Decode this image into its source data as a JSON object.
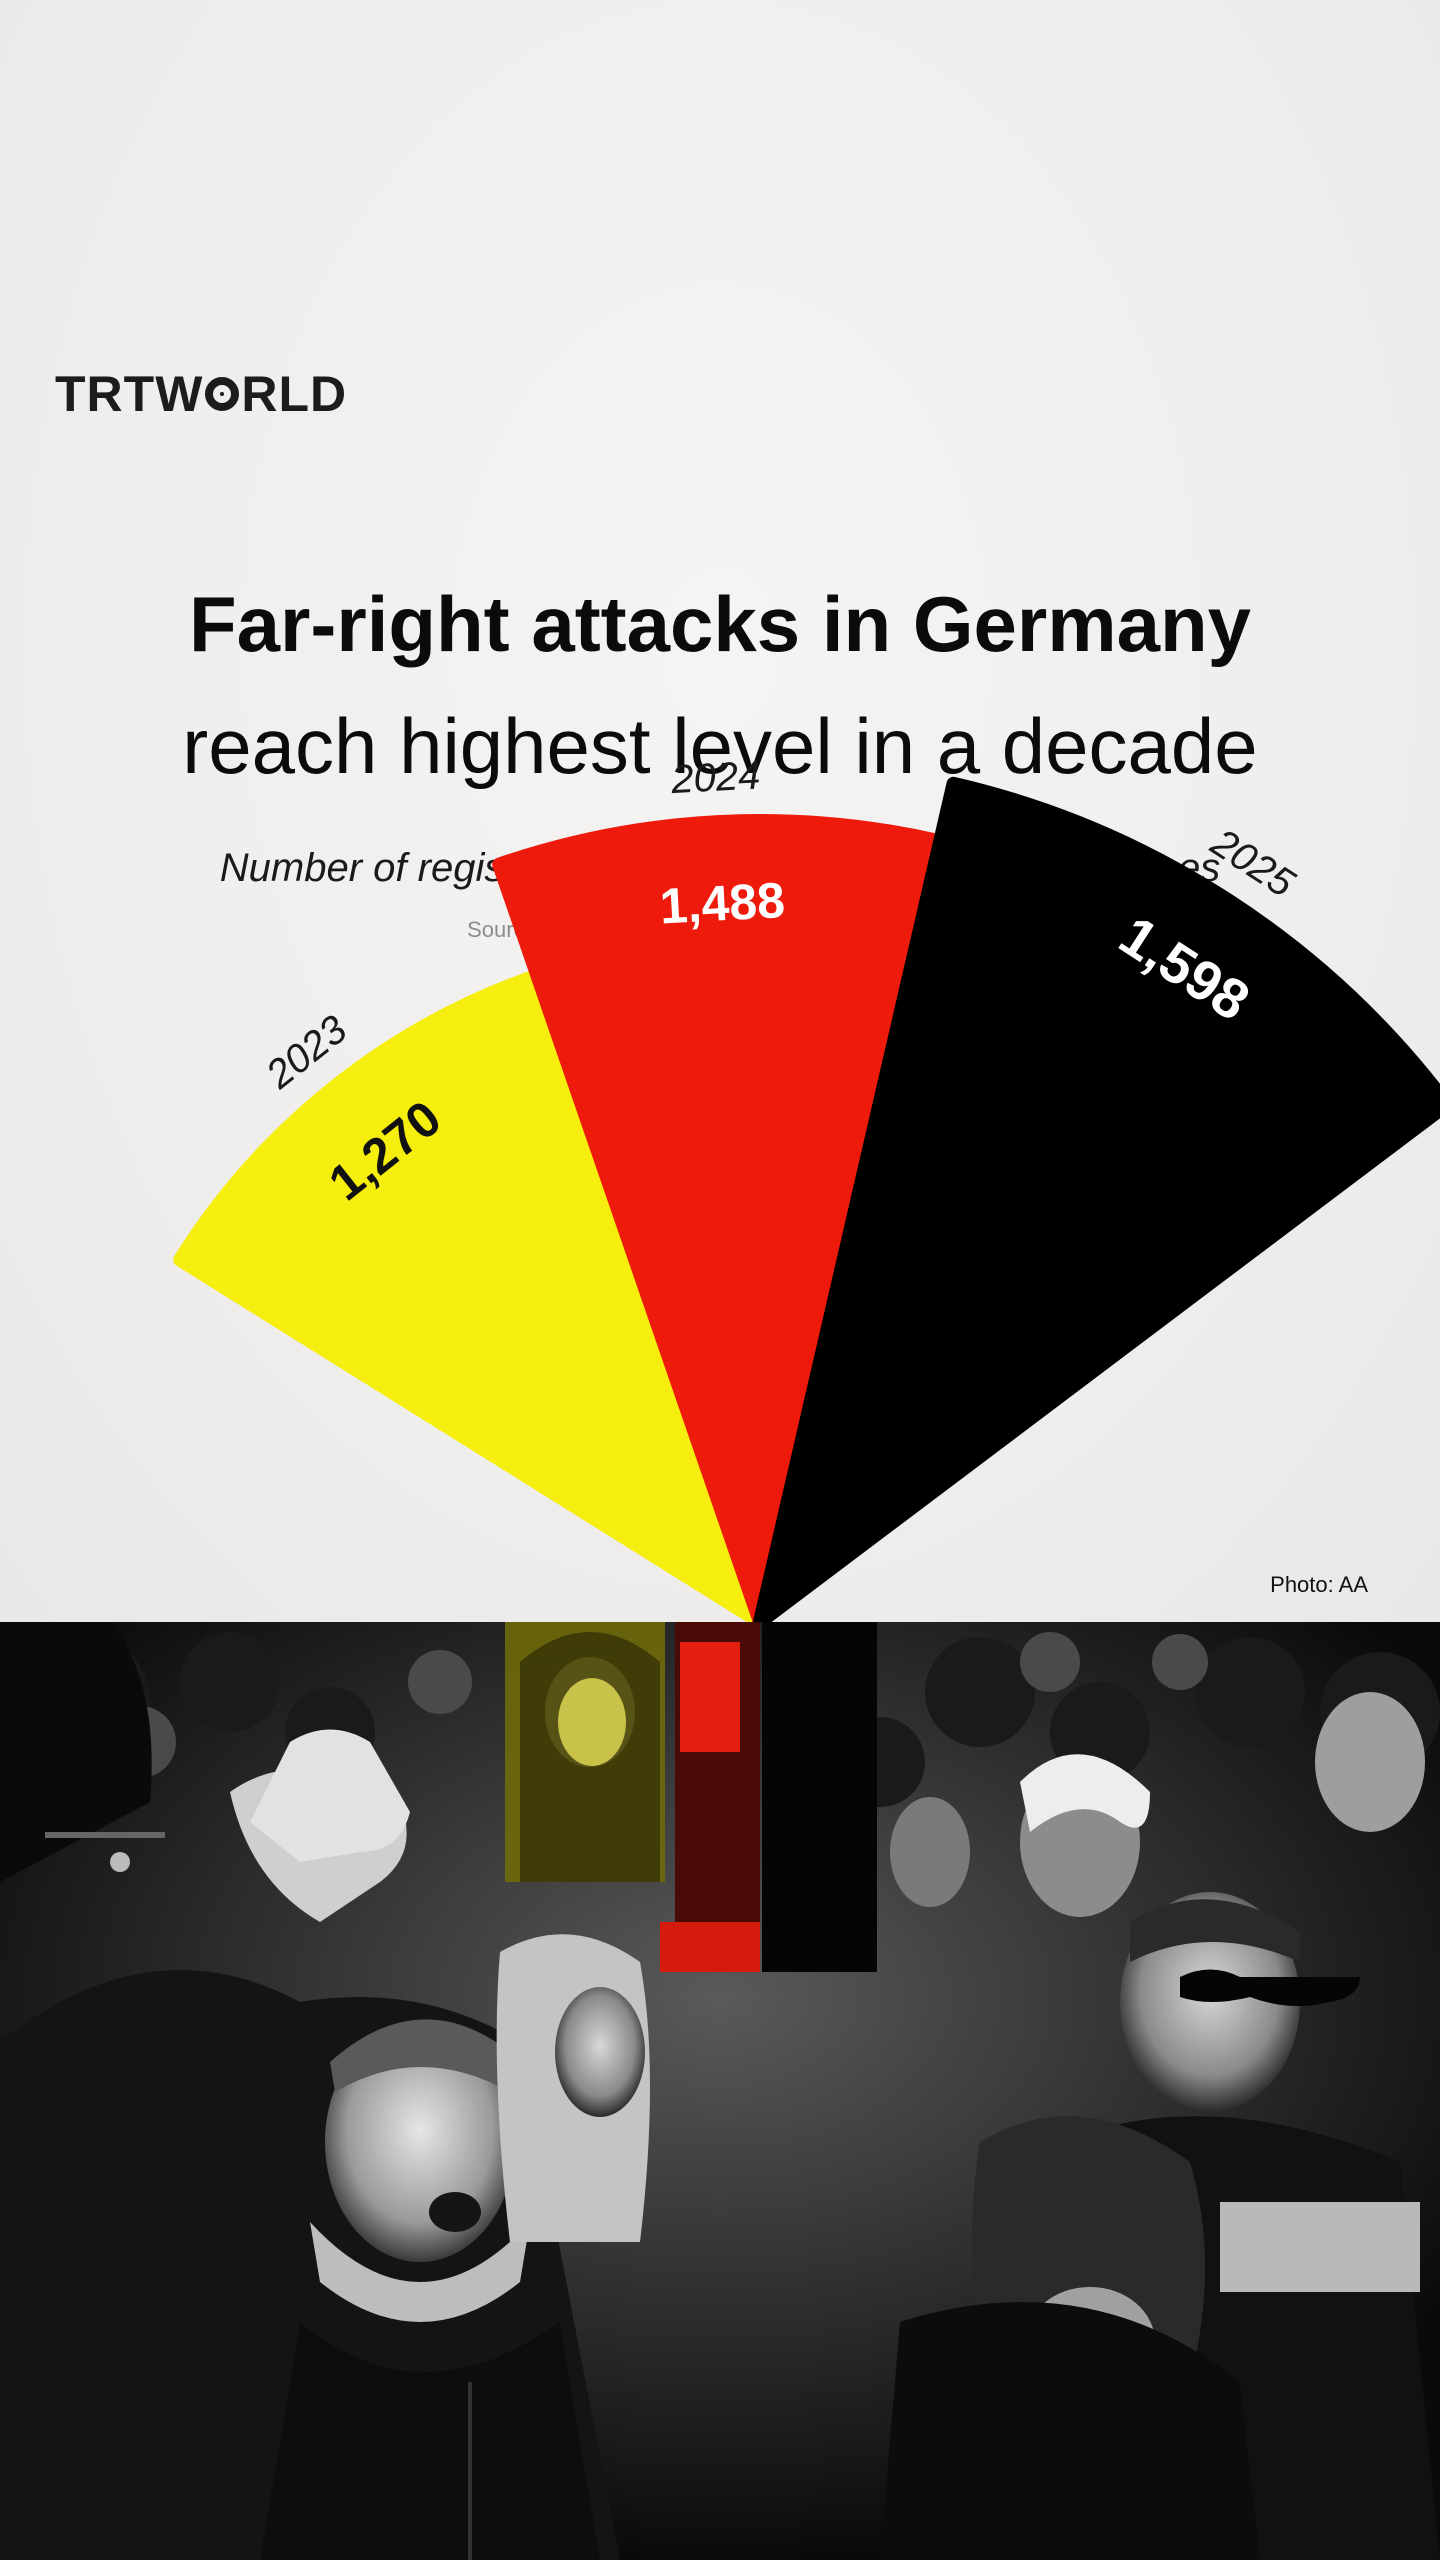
{
  "brand": {
    "logo_text_left": "TRT",
    "logo_text_right": "WRLD",
    "logo_alt": "TRTWORLD"
  },
  "header": {
    "title_bold": "Far-right attacks in Germany",
    "title_light": "reach highest level in a decade",
    "subtitle": "Number of registered right-wing motivated violent crimes",
    "source": "Source: Federal Criminal Police Office (BKA) via AA"
  },
  "photo_credit": "Photo: AA",
  "colors": {
    "yellow": "#f6ee0e",
    "red": "#ee1a0c",
    "black": "#000000",
    "paper": "#f1f0ee"
  },
  "chart_data": {
    "type": "bar",
    "style": "radial fan of wedges, wedge length proportional to value",
    "categories": [
      "2023",
      "2024",
      "2025"
    ],
    "values": [
      1270,
      1488,
      1598
    ],
    "value_labels": [
      "1,270",
      "1,488",
      "1,598"
    ],
    "series_colors": [
      "#f6ee0e",
      "#ee1a0c",
      "#000000"
    ],
    "title": "Number of registered right-wing motivated violent crimes",
    "xlabel": "",
    "ylabel": ""
  }
}
